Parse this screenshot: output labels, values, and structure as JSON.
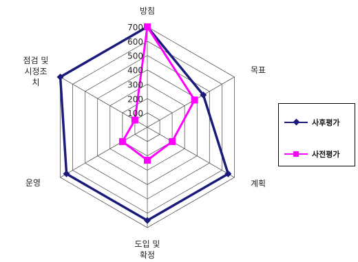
{
  "chart_data": {
    "type": "radar",
    "axes": [
      "방침",
      "목표",
      "계획",
      "도입 및 확정",
      "운영",
      "점검 및 시정조치"
    ],
    "axis_label_lines": [
      [
        "방침"
      ],
      [
        "목표"
      ],
      [
        "계획"
      ],
      [
        "도입 및",
        "확정"
      ],
      [
        "운영"
      ],
      [
        "점검 및",
        "시정조",
        "치"
      ]
    ],
    "rmax": 700,
    "ticks": [
      100,
      200,
      300,
      400,
      500,
      600,
      700
    ],
    "series": [
      {
        "name": "사후평가",
        "color": "#1a1a7a",
        "marker": "diamond",
        "values": [
          700,
          450,
          650,
          650,
          650,
          700
        ]
      },
      {
        "name": "사전평가",
        "color": "#ff00ff",
        "marker": "square",
        "values": [
          700,
          380,
          200,
          230,
          200,
          100
        ]
      }
    ],
    "legend_position": "right",
    "grid": true
  }
}
